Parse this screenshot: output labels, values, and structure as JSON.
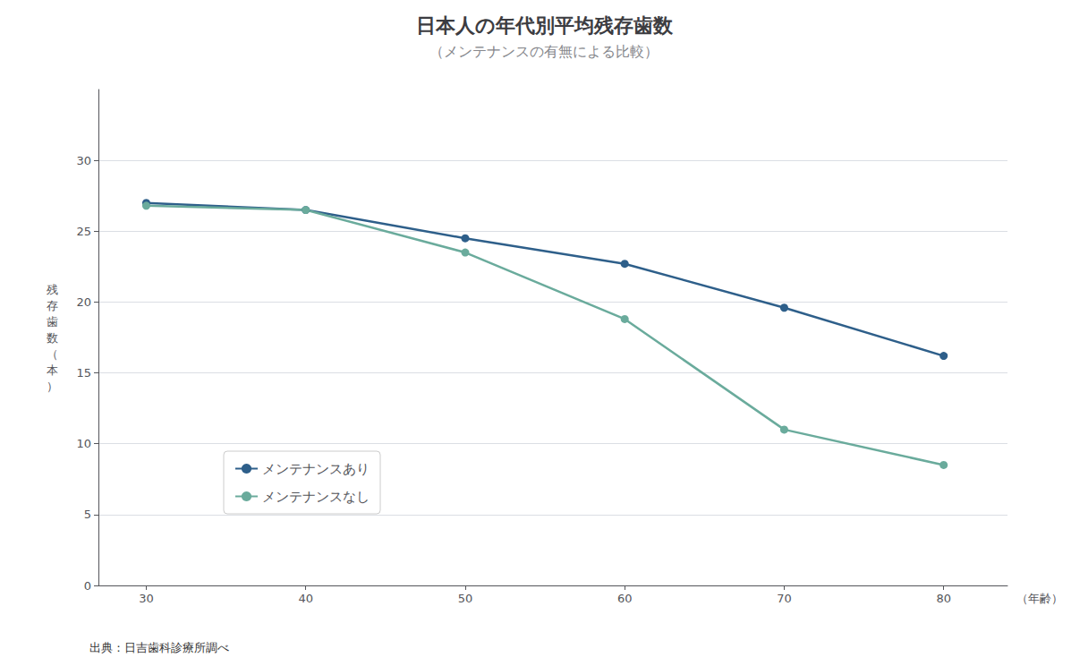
{
  "chart_data": {
    "type": "line",
    "title": "日本人の年代別平均残存歯数",
    "subtitle": "（メンテナンスの有無による比較）",
    "xlabel": "（年齢）",
    "ylabel": "残存歯数（本）",
    "annotations": [
      "出典：日吉歯科診療所調べ"
    ],
    "x": [
      30,
      40,
      50,
      60,
      70,
      80
    ],
    "series": [
      {
        "name": "メンテナンスあり",
        "color": "#2e5f8a",
        "values": [
          27.0,
          26.5,
          24.5,
          22.7,
          19.6,
          16.2
        ]
      },
      {
        "name": "メンテナンスなし",
        "color": "#6aab9c",
        "values": [
          26.8,
          26.5,
          23.5,
          18.8,
          11.0,
          8.5
        ]
      }
    ],
    "xlim": [
      27,
      84
    ],
    "xticks": [
      30,
      40,
      50,
      60,
      70,
      80
    ],
    "ylim": [
      0,
      35
    ],
    "yticks": [
      0,
      5,
      10,
      15,
      20,
      25,
      30
    ],
    "grid": true,
    "legend": "lower left",
    "marker": "circle"
  }
}
